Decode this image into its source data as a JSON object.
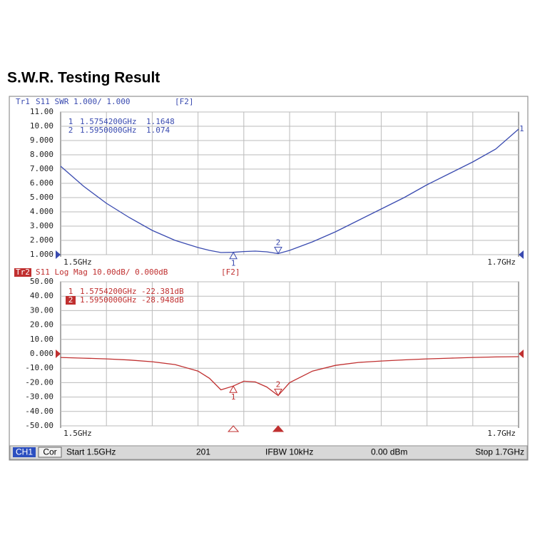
{
  "title": "S.W.R. Testing Result",
  "chart_data": [
    {
      "type": "line",
      "trace_id": "Tr1",
      "header": "S11 SWR 1.000/ 1.000",
      "tag": "[F2]",
      "trace_end_label": "1",
      "reference_level": 1,
      "color": "#3a4bb0",
      "x": [
        1.5,
        1.51,
        1.52,
        1.53,
        1.54,
        1.55,
        1.56,
        1.565,
        1.57,
        1.5754,
        1.58,
        1.585,
        1.59,
        1.595,
        1.6,
        1.61,
        1.62,
        1.63,
        1.64,
        1.65,
        1.66,
        1.67,
        1.68,
        1.69,
        1.7
      ],
      "series": [
        {
          "name": "S11 SWR",
          "color": "#3a4bb0",
          "values": [
            7.2,
            5.8,
            4.6,
            3.6,
            2.7,
            2.0,
            1.5,
            1.3,
            1.15,
            1.1648,
            1.22,
            1.25,
            1.2,
            1.074,
            1.3,
            1.9,
            2.6,
            3.4,
            4.2,
            5.0,
            5.9,
            6.7,
            7.5,
            8.4,
            9.8
          ]
        }
      ],
      "xlim": [
        1.5,
        1.7
      ],
      "xticks": [
        {
          "value": 1.5,
          "label": "1.5GHz"
        },
        {
          "value": 1.7,
          "label": "1.7GHz"
        }
      ],
      "ylim": [
        1,
        11
      ],
      "yticks": [
        {
          "value": 11,
          "label": "11.00"
        },
        {
          "value": 10,
          "label": "10.00"
        },
        {
          "value": 9,
          "label": "9.000"
        },
        {
          "value": 8,
          "label": "8.000"
        },
        {
          "value": 7,
          "label": "7.000"
        },
        {
          "value": 6,
          "label": "6.000"
        },
        {
          "value": 5,
          "label": "5.000"
        },
        {
          "value": 4,
          "label": "4.000"
        },
        {
          "value": 3,
          "label": "3.000"
        },
        {
          "value": 2,
          "label": "2.000"
        },
        {
          "value": 1,
          "label": "1.000"
        }
      ],
      "grid": true,
      "markers": [
        {
          "name": "1",
          "x": {
            "value": 1.57542,
            "label": "1.5754200GHz"
          },
          "y": 1.1648
        },
        {
          "name": "2",
          "x": {
            "value": 1.595,
            "label": "1.5950000GHz"
          },
          "y": 1.074
        }
      ]
    },
    {
      "type": "line",
      "trace_id": "Tr2",
      "header": "S11 Log Mag 10.00dB/ 0.000dB",
      "tag": "[F2]",
      "reference_level": 0,
      "color": "#c03030",
      "x": [
        1.5,
        1.51,
        1.52,
        1.53,
        1.54,
        1.55,
        1.56,
        1.565,
        1.57,
        1.5754,
        1.58,
        1.585,
        1.59,
        1.595,
        1.6,
        1.61,
        1.62,
        1.63,
        1.64,
        1.65,
        1.66,
        1.67,
        1.68,
        1.69,
        1.7
      ],
      "series": [
        {
          "name": "S11 Log Mag",
          "color": "#c03030",
          "values": [
            -2.5,
            -3.0,
            -3.5,
            -4.3,
            -5.5,
            -7.5,
            -12,
            -17,
            -25,
            -22.381,
            -19,
            -19.5,
            -23,
            -28.948,
            -20,
            -12,
            -8,
            -6,
            -5,
            -4.2,
            -3.5,
            -3,
            -2.5,
            -2.2,
            -2
          ]
        }
      ],
      "xlim": [
        1.5,
        1.7
      ],
      "xticks": [
        {
          "value": 1.5,
          "label": "1.5GHz"
        },
        {
          "value": 1.7,
          "label": "1.7GHz"
        }
      ],
      "ylim": [
        -50,
        50
      ],
      "yticks": [
        {
          "value": 50,
          "label": "50.00"
        },
        {
          "value": 40,
          "label": "40.00"
        },
        {
          "value": 30,
          "label": "30.00"
        },
        {
          "value": 20,
          "label": "20.00"
        },
        {
          "value": 10,
          "label": "10.00"
        },
        {
          "value": 0,
          "label": "0.000"
        },
        {
          "value": -10,
          "label": "-10.00"
        },
        {
          "value": -20,
          "label": "-20.00"
        },
        {
          "value": -30,
          "label": "-30.00"
        },
        {
          "value": -40,
          "label": "-40.00"
        },
        {
          "value": -50,
          "label": "-50.00"
        }
      ],
      "grid": true,
      "markers": [
        {
          "name": "1",
          "x": {
            "value": 1.57542,
            "label": "1.5754200GHz"
          },
          "y": {
            "value": -22.381,
            "label": "-22.381dB"
          }
        },
        {
          "name": "2",
          "x": {
            "value": 1.595,
            "label": "1.5950000GHz"
          },
          "y": {
            "value": -28.948,
            "label": "-28.948dB"
          },
          "active": true
        }
      ]
    }
  ],
  "status_bar": {
    "channel": "CH1",
    "correction": "Cor",
    "start": "Start 1.5GHz",
    "points": "201",
    "ifbw": "IFBW 10kHz",
    "power": "0.00 dBm",
    "stop": "Stop 1.7GHz"
  }
}
